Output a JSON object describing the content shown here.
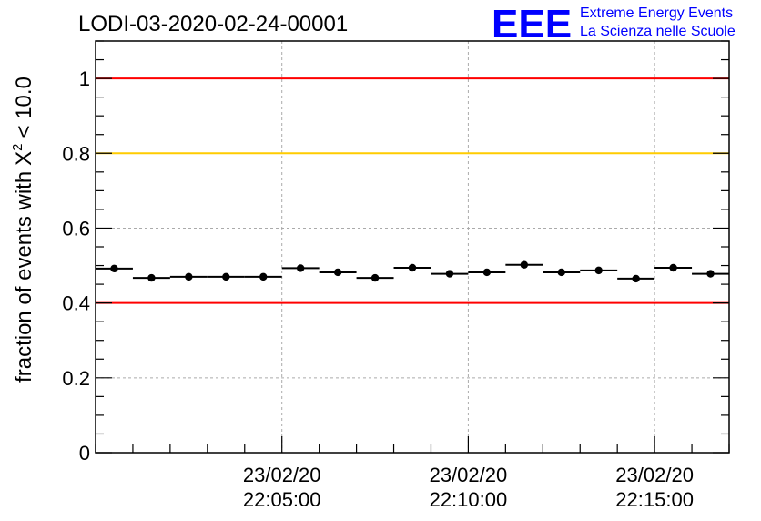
{
  "title": "LODI-03-2020-02-24-00001",
  "logo": {
    "mark": "EEE",
    "line1": "Extreme Energy Events",
    "line2": "La Scienza nelle Scuole",
    "color": "#0000ff"
  },
  "colors": {
    "threshold_red": "#ff0000",
    "threshold_yellow": "#ffcc00",
    "points": "#000000",
    "grid": "#aaaaaa"
  },
  "chart_data": {
    "type": "scatter",
    "title": "LODI-03-2020-02-24-00001",
    "ylabel_prefix": "fraction of events with",
    "ylabel_symbol": "X",
    "ylabel_sup": "2",
    "ylabel_suffix": "< 10.0",
    "xlabel": "",
    "ylim": [
      0,
      1.1
    ],
    "x_range_minutes": [
      0,
      17
    ],
    "x_tick_labels": [
      {
        "at": 5,
        "date": "23/02/20",
        "time": "22:05:00"
      },
      {
        "at": 10,
        "date": "23/02/20",
        "time": "22:10:00"
      },
      {
        "at": 15,
        "date": "23/02/20",
        "time": "22:15:00"
      }
    ],
    "y_ticks": [
      {
        "value": 0,
        "label": "0"
      },
      {
        "value": 0.2,
        "label": "0.2"
      },
      {
        "value": 0.4,
        "label": "0.4"
      },
      {
        "value": 0.6,
        "label": "0.6"
      },
      {
        "value": 0.8,
        "label": "0.8"
      },
      {
        "value": 1,
        "label": "1"
      }
    ],
    "grid": true,
    "reference_lines": [
      {
        "value": 1.0,
        "color": "#ff0000"
      },
      {
        "value": 0.8,
        "color": "#ffcc00"
      },
      {
        "value": 0.4,
        "color": "#ff0000"
      }
    ],
    "bin_width_minutes": 1,
    "x_start_time": "22:00:00",
    "values": [
      0.492,
      0.467,
      0.47,
      0.47,
      0.47,
      0.493,
      0.482,
      0.467,
      0.494,
      0.478,
      0.482,
      0.502,
      0.482,
      0.487,
      0.465,
      0.494,
      0.478
    ]
  }
}
